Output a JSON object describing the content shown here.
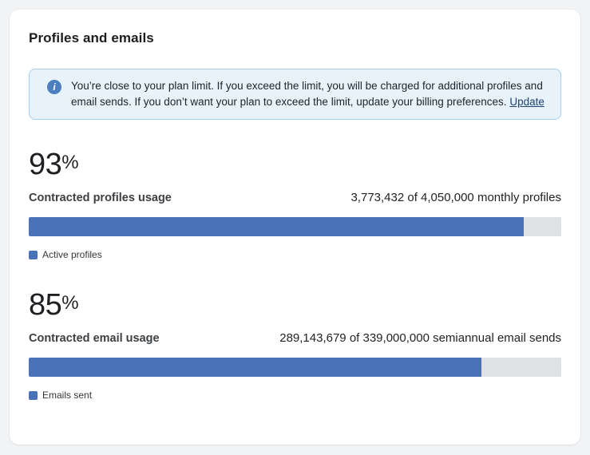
{
  "title": "Profiles and emails",
  "alert": {
    "icon": "info-icon",
    "icon_glyph": "i",
    "message": "You’re close to your plan limit. If you exceed the limit, you will be charged for additional profiles and email sends. If you don’t want your plan to exceed the limit, update your billing preferences.",
    "link_label": "Update"
  },
  "sections": [
    {
      "percent": "93",
      "percent_unit": "%",
      "label": "Contracted profiles usage",
      "usage": "3,773,432 of 4,050,000 monthly profiles",
      "legend": "Active profiles",
      "fill_pct": 93
    },
    {
      "percent": "85",
      "percent_unit": "%",
      "label": "Contracted email usage",
      "usage": "289,143,679 of 339,000,000 semiannual email sends",
      "legend": "Emails sent",
      "fill_pct": 85
    }
  ],
  "colors": {
    "bar_fill": "#4a72b8",
    "bar_track": "#dfe2e5",
    "alert_bg": "#e7f2fb",
    "alert_border": "#a9cfec",
    "link": "#1d4273",
    "info_icon": "#4d7fc0"
  }
}
